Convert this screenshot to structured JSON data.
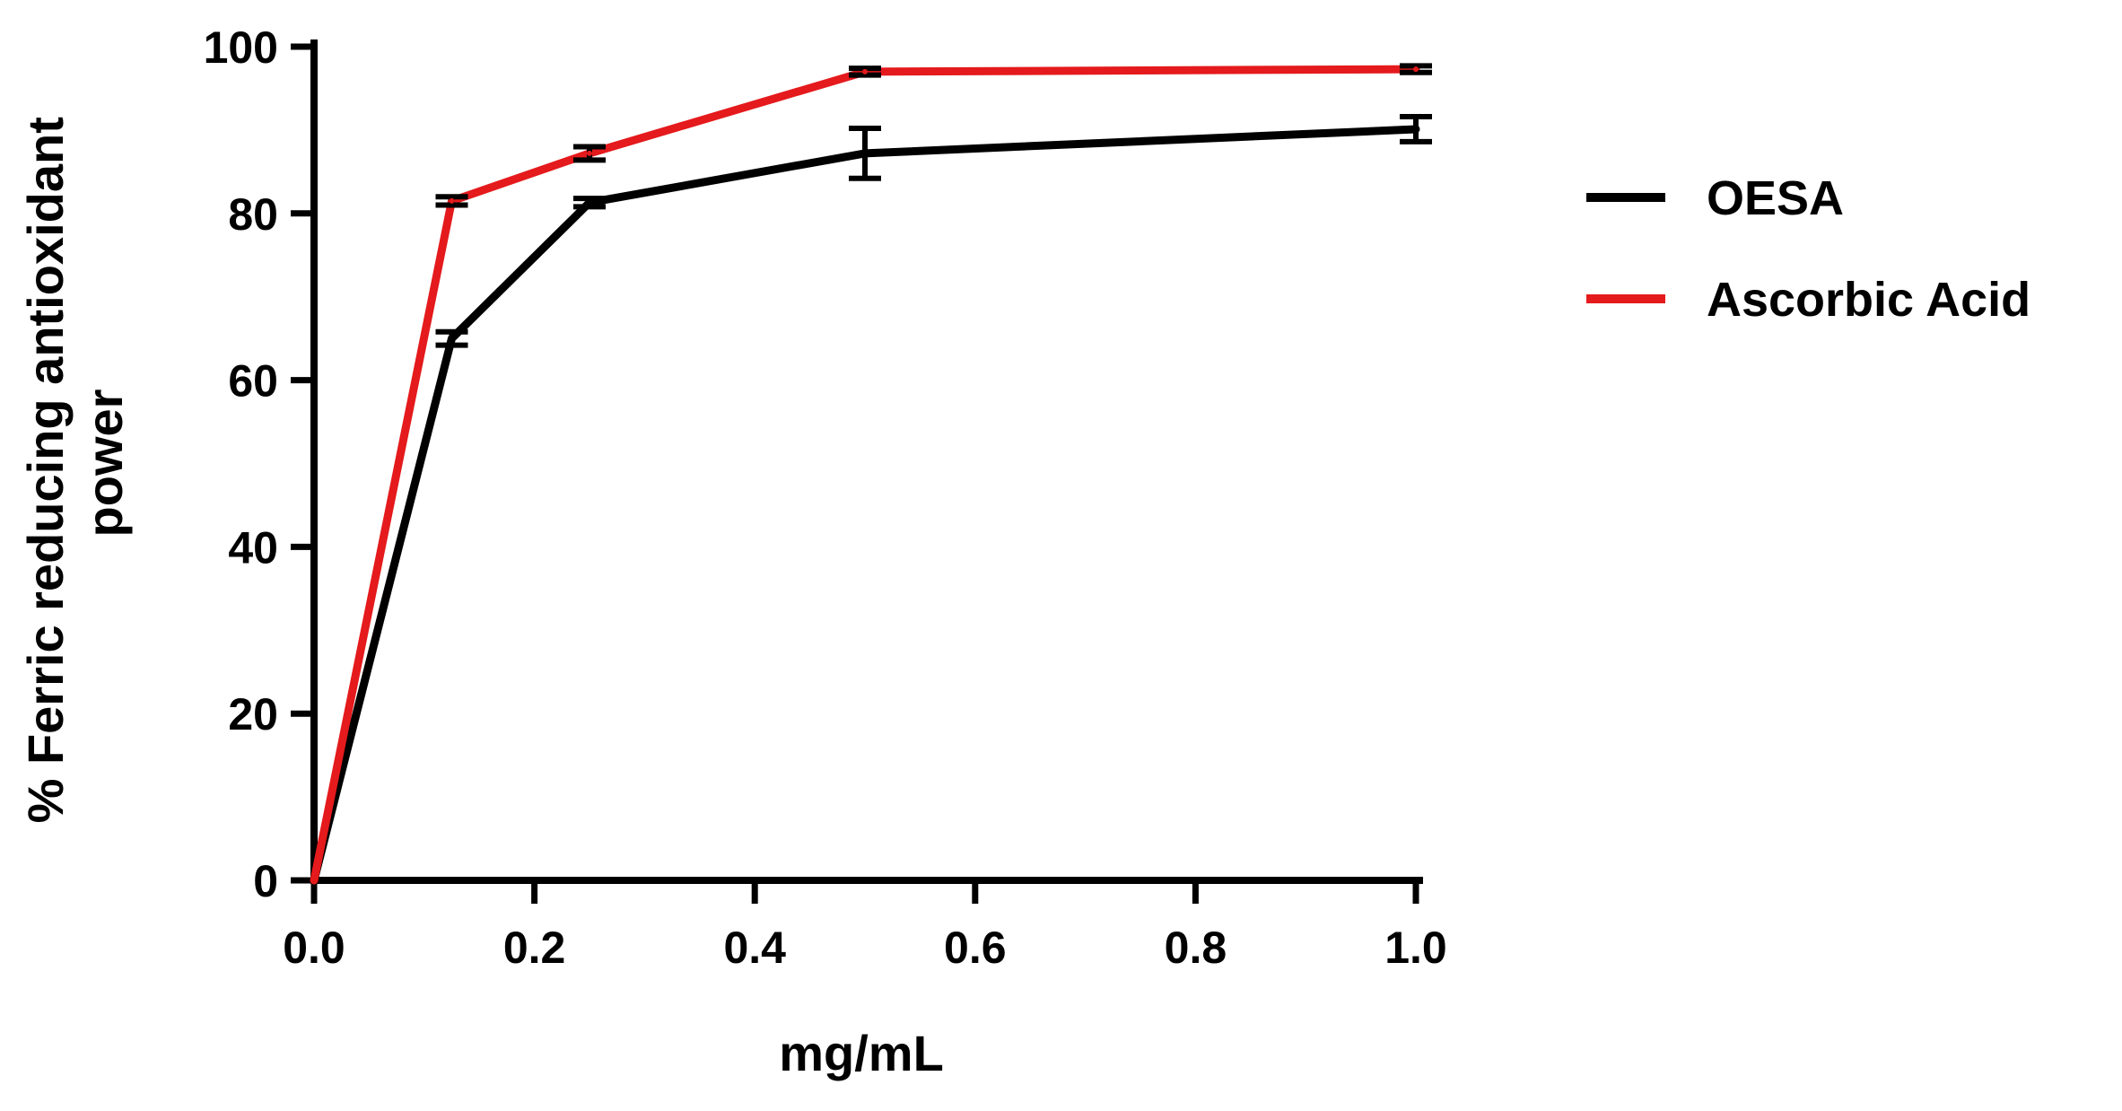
{
  "chart_data": {
    "type": "line",
    "title": "",
    "xlabel": "mg/mL",
    "ylabel_lines": [
      "% Ferric reducing antioxidant",
      "power"
    ],
    "xlim": [
      0,
      1.0
    ],
    "ylim": [
      0,
      100
    ],
    "x_ticks": [
      "0.0",
      "0.2",
      "0.4",
      "0.6",
      "0.8",
      "1.0"
    ],
    "y_ticks": [
      "0",
      "20",
      "40",
      "60",
      "80",
      "100"
    ],
    "x_tick_values": [
      0,
      0.2,
      0.4,
      0.6,
      0.8,
      1.0
    ],
    "y_tick_values": [
      0,
      20,
      40,
      60,
      80,
      100
    ],
    "grid": false,
    "legend_position": "right",
    "series": [
      {
        "name": "OESA",
        "color": "#000000",
        "x": [
          0,
          0.125,
          0.25,
          0.5,
          1.0
        ],
        "y": [
          0,
          65.0,
          81.3,
          87.2,
          90.1
        ],
        "err": [
          0,
          0.8,
          0.5,
          3.0,
          1.5
        ]
      },
      {
        "name": "Ascorbic Acid",
        "color": "#e41a1c",
        "x": [
          0,
          0.125,
          0.25,
          0.5,
          1.0
        ],
        "y": [
          0,
          81.5,
          87.2,
          97.0,
          97.3
        ],
        "err": [
          0,
          0.5,
          0.8,
          0.4,
          0.4
        ]
      }
    ]
  }
}
